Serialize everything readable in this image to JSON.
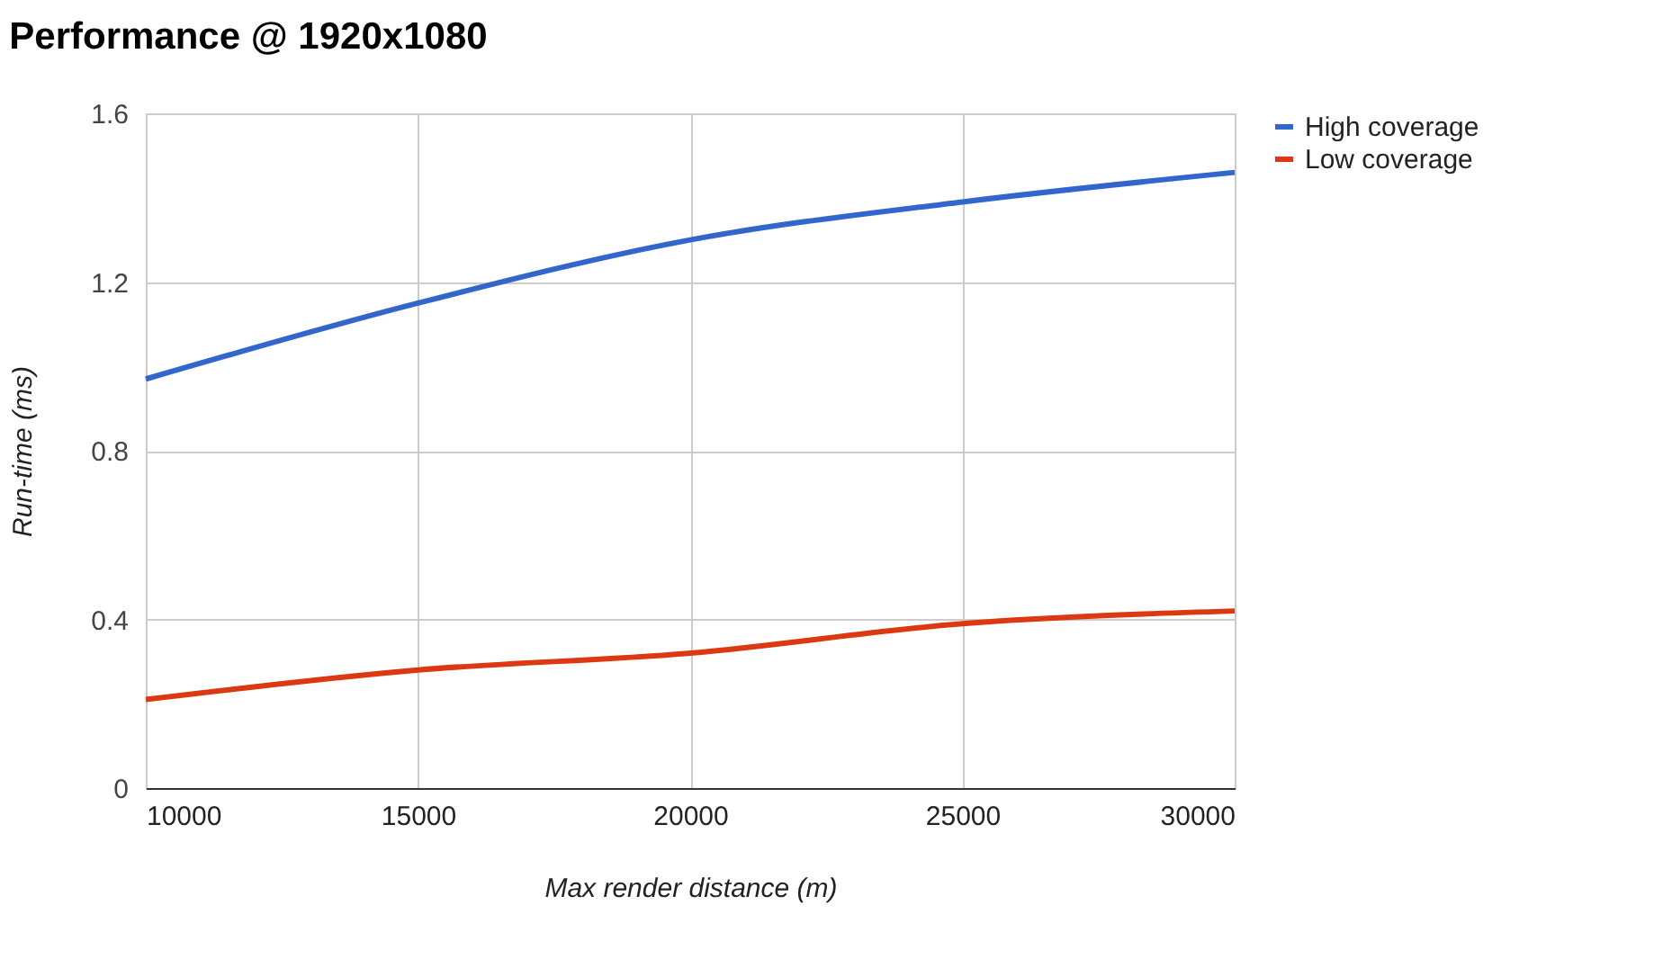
{
  "chart_data": {
    "type": "line",
    "title": "Performance @ 1920x1080",
    "xlabel": "Max render distance (m)",
    "ylabel": "Run-time (ms)",
    "x": [
      10000,
      15000,
      20000,
      25000,
      30000
    ],
    "series": [
      {
        "name": "High coverage",
        "color": "#3366cc",
        "values": [
          0.97,
          1.15,
          1.3,
          1.39,
          1.46
        ]
      },
      {
        "name": "Low coverage",
        "color": "#dc3912",
        "values": [
          0.21,
          0.28,
          0.32,
          0.39,
          0.42
        ]
      }
    ],
    "xlim": [
      10000,
      30000
    ],
    "xticks": [
      10000,
      15000,
      20000,
      25000,
      30000
    ],
    "ylim": [
      0,
      1.6
    ],
    "yticks": [
      0,
      0.4,
      0.8,
      1.2,
      1.6
    ],
    "grid": true,
    "legend": "top right",
    "marker": "none",
    "line_style": "solid"
  }
}
